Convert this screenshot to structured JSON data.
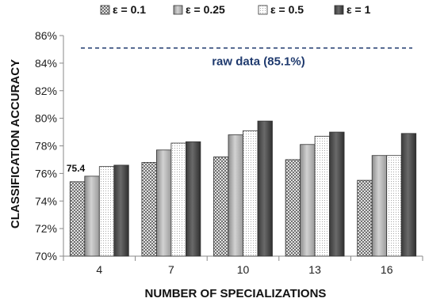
{
  "chart_data": {
    "type": "bar",
    "xlabel": "NUMBER OF SPECIALIZATIONS",
    "ylabel": "CLASSIFICATION ACCURACY",
    "categories": [
      "4",
      "7",
      "10",
      "13",
      "16"
    ],
    "series": [
      {
        "name": "ε = 0.1",
        "pattern": "crosshatch",
        "values": [
          75.4,
          76.8,
          77.2,
          77.0,
          75.5
        ]
      },
      {
        "name": "ε = 0.25",
        "pattern": "gradient",
        "values": [
          75.8,
          77.7,
          78.8,
          78.1,
          77.3
        ]
      },
      {
        "name": "ε = 0.5",
        "pattern": "dots",
        "values": [
          76.5,
          78.2,
          79.1,
          78.7,
          77.3
        ]
      },
      {
        "name": "ε = 1",
        "pattern": "dark",
        "values": [
          76.6,
          78.3,
          79.8,
          79.0,
          78.9
        ]
      }
    ],
    "ylim": [
      70,
      86
    ],
    "yticks": [
      70,
      72,
      74,
      76,
      78,
      80,
      82,
      84,
      86
    ],
    "ytick_suffix": "%",
    "reference_line": {
      "value": 85.1,
      "label": "raw data (85.1%)",
      "color": "#1f3a6e"
    },
    "data_labels": [
      {
        "series": 0,
        "category": 0,
        "text": "75.4"
      }
    ],
    "legend_position": "top",
    "grid": false
  }
}
